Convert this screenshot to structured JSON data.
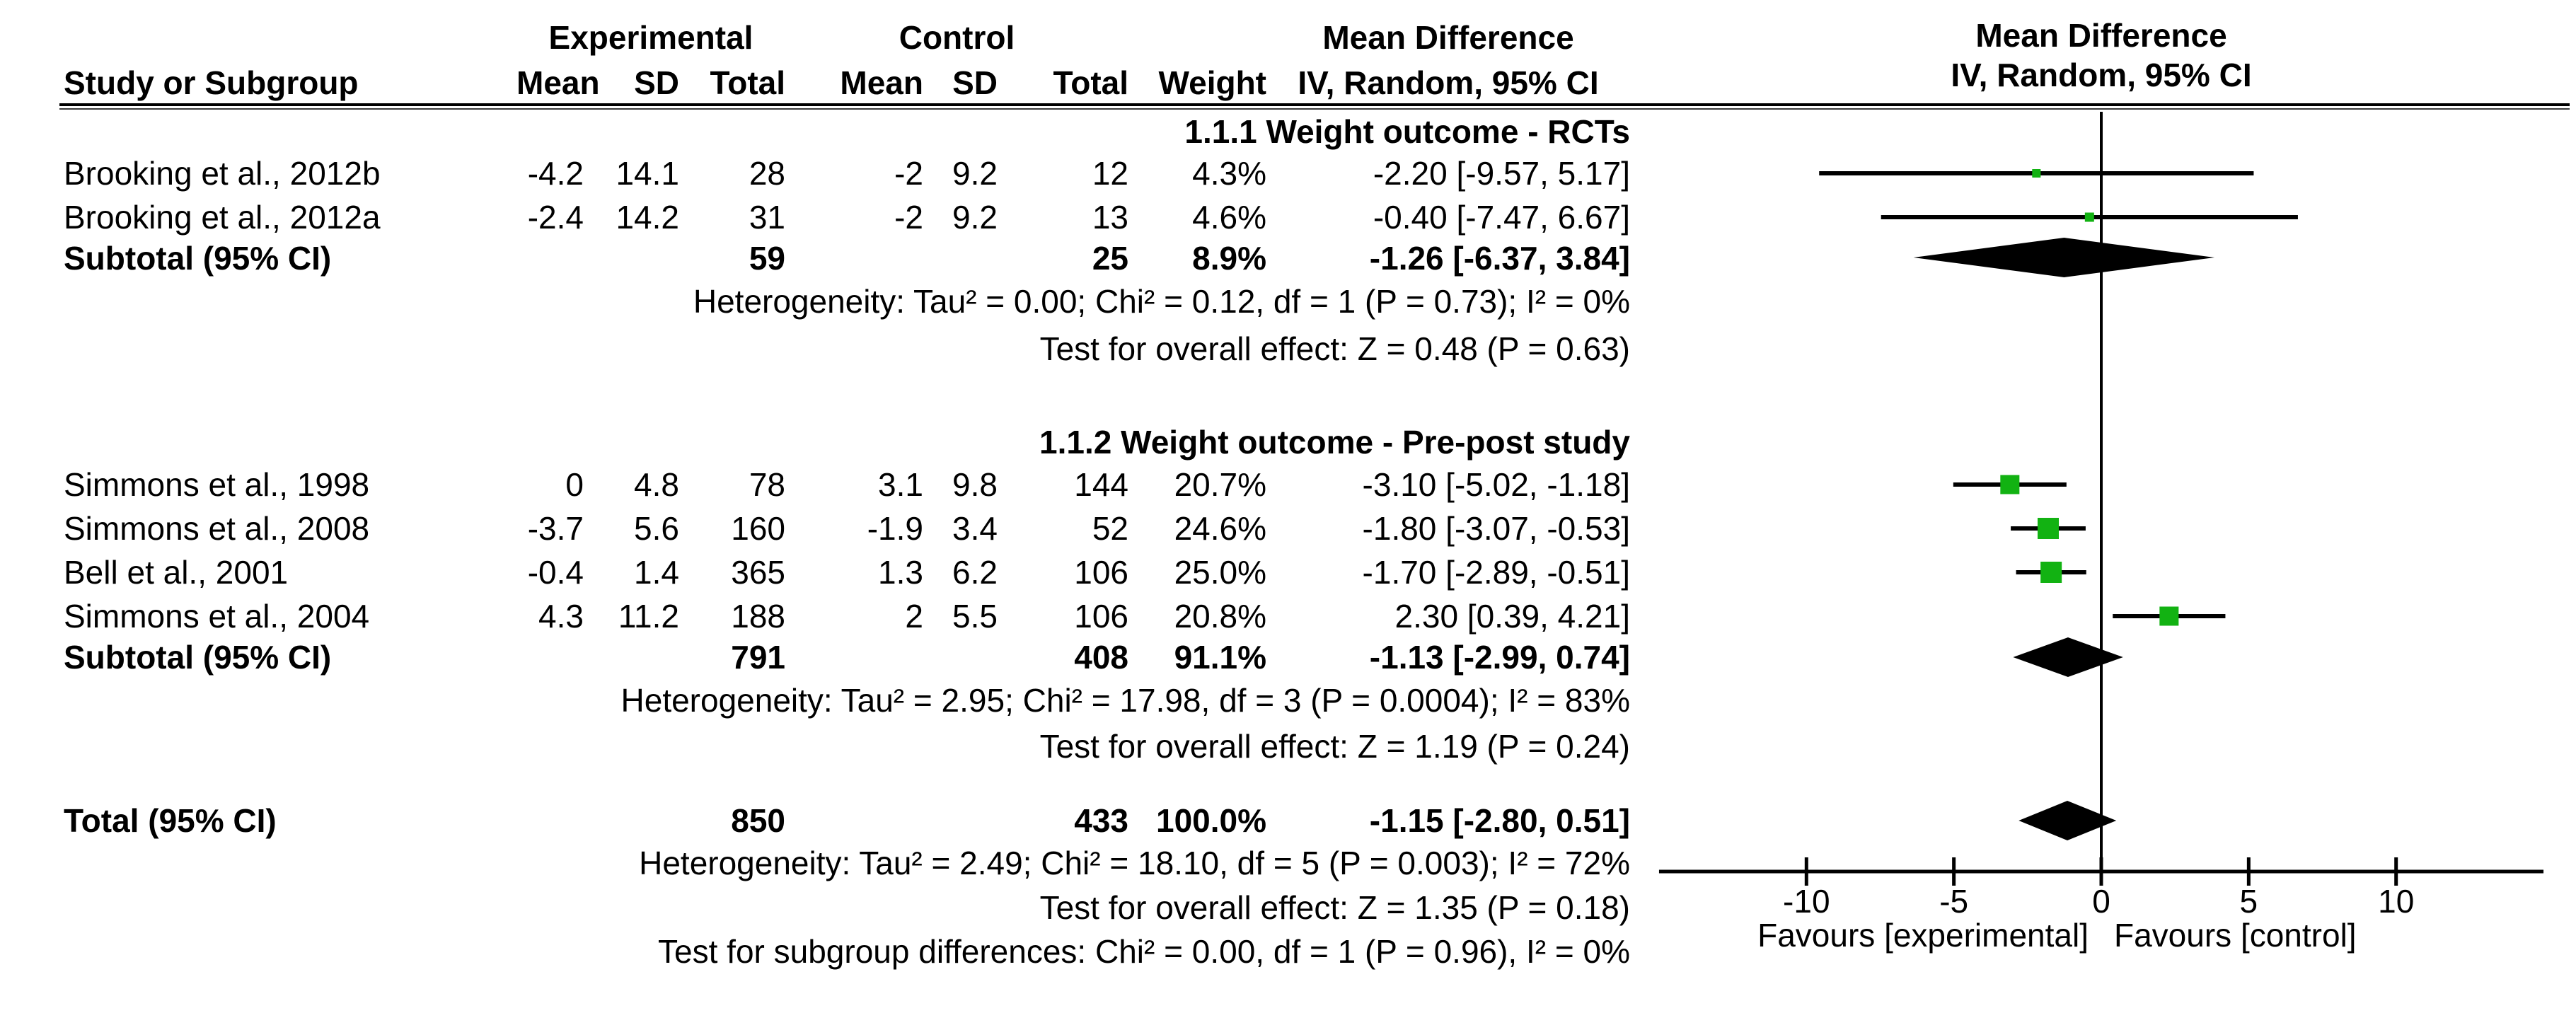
{
  "chart_data": {
    "type": "scatter",
    "subtype": "forest_plot",
    "effect_measure": "Mean Difference",
    "model": "IV, Random, 95% CI",
    "marker_color": "#12b212",
    "diamond_color": "#000000",
    "plot_header": {
      "line1": "Mean Difference",
      "line2": "IV, Random, 95% CI"
    },
    "table_header": {
      "group_experimental": "Experimental",
      "group_control": "Control",
      "group_md": "Mean Difference",
      "study": "Study or Subgroup",
      "mean": "Mean",
      "sd": "SD",
      "total": "Total",
      "weight": "Weight",
      "ci": "IV, Random, 95% CI"
    },
    "x_axis": {
      "range": [
        -15,
        15
      ],
      "grid": false,
      "ticks": [
        {
          "value": -10,
          "label": "-10"
        },
        {
          "value": -5,
          "label": "-5"
        },
        {
          "value": 0,
          "label": "0"
        },
        {
          "value": 5,
          "label": "5"
        },
        {
          "value": 10,
          "label": "10"
        }
      ],
      "left_label": "Favours [experimental]",
      "right_label": "Favours [control]"
    },
    "sections": [
      {
        "title": "1.1.1 Weight outcome - RCTs",
        "studies": [
          {
            "name": "Brooking et al., 2012b",
            "exp_mean": "-4.2",
            "exp_sd": "14.1",
            "exp_total": "28",
            "ctrl_mean": "-2",
            "ctrl_sd": "9.2",
            "ctrl_total": "12",
            "weight": "4.3%",
            "md_ci": "-2.20 [-9.57, 5.17]",
            "estimate": -2.2,
            "ci_low": -9.57,
            "ci_high": 5.17,
            "weight_pct": 4.3
          },
          {
            "name": "Brooking et al., 2012a",
            "exp_mean": "-2.4",
            "exp_sd": "14.2",
            "exp_total": "31",
            "ctrl_mean": "-2",
            "ctrl_sd": "9.2",
            "ctrl_total": "13",
            "weight": "4.6%",
            "md_ci": "-0.40 [-7.47, 6.67]",
            "estimate": -0.4,
            "ci_low": -7.47,
            "ci_high": 6.67,
            "weight_pct": 4.6
          }
        ],
        "subtotal": {
          "label": "Subtotal (95% CI)",
          "exp_total": "59",
          "ctrl_total": "25",
          "weight": "8.9%",
          "md_ci": "-1.26 [-6.37, 3.84]",
          "estimate": -1.26,
          "ci_low": -6.37,
          "ci_high": 3.84
        },
        "heterogeneity": "Heterogeneity: Tau² = 0.00; Chi² = 0.12, df = 1 (P = 0.73); I² = 0%",
        "overall_effect": "Test for overall effect: Z = 0.48 (P = 0.63)"
      },
      {
        "title": "1.1.2 Weight outcome - Pre-post study",
        "studies": [
          {
            "name": "Simmons et al., 1998",
            "exp_mean": "0",
            "exp_sd": "4.8",
            "exp_total": "78",
            "ctrl_mean": "3.1",
            "ctrl_sd": "9.8",
            "ctrl_total": "144",
            "weight": "20.7%",
            "md_ci": "-3.10 [-5.02, -1.18]",
            "estimate": -3.1,
            "ci_low": -5.02,
            "ci_high": -1.18,
            "weight_pct": 20.7
          },
          {
            "name": "Simmons et al., 2008",
            "exp_mean": "-3.7",
            "exp_sd": "5.6",
            "exp_total": "160",
            "ctrl_mean": "-1.9",
            "ctrl_sd": "3.4",
            "ctrl_total": "52",
            "weight": "24.6%",
            "md_ci": "-1.80 [-3.07, -0.53]",
            "estimate": -1.8,
            "ci_low": -3.07,
            "ci_high": -0.53,
            "weight_pct": 24.6
          },
          {
            "name": "Bell et al., 2001",
            "exp_mean": "-0.4",
            "exp_sd": "1.4",
            "exp_total": "365",
            "ctrl_mean": "1.3",
            "ctrl_sd": "6.2",
            "ctrl_total": "106",
            "weight": "25.0%",
            "md_ci": "-1.70 [-2.89, -0.51]",
            "estimate": -1.7,
            "ci_low": -2.89,
            "ci_high": -0.51,
            "weight_pct": 25.0
          },
          {
            "name": "Simmons et al., 2004",
            "exp_mean": "4.3",
            "exp_sd": "11.2",
            "exp_total": "188",
            "ctrl_mean": "2",
            "ctrl_sd": "5.5",
            "ctrl_total": "106",
            "weight": "20.8%",
            "md_ci": "2.30 [0.39, 4.21]",
            "estimate": 2.3,
            "ci_low": 0.39,
            "ci_high": 4.21,
            "weight_pct": 20.8
          }
        ],
        "subtotal": {
          "label": "Subtotal (95% CI)",
          "exp_total": "791",
          "ctrl_total": "408",
          "weight": "91.1%",
          "md_ci": "-1.13 [-2.99, 0.74]",
          "estimate": -1.13,
          "ci_low": -2.99,
          "ci_high": 0.74
        },
        "heterogeneity": "Heterogeneity: Tau² = 2.95; Chi² = 17.98, df = 3 (P = 0.0004); I² = 83%",
        "overall_effect": "Test for overall effect: Z = 1.19 (P = 0.24)"
      }
    ],
    "total": {
      "label": "Total (95% CI)",
      "exp_total": "850",
      "ctrl_total": "433",
      "weight": "100.0%",
      "md_ci": "-1.15 [-2.80, 0.51]",
      "estimate": -1.15,
      "ci_low": -2.8,
      "ci_high": 0.51
    },
    "footer_tests": {
      "heterogeneity": "Heterogeneity: Tau² = 2.49; Chi² = 18.10, df = 5 (P = 0.003); I² = 72%",
      "overall_effect": "Test for overall effect: Z = 1.35 (P = 0.18)",
      "subgroup_differences": "Test for subgroup differences: Chi² = 0.00, df = 1 (P = 0.96), I² = 0%"
    }
  }
}
